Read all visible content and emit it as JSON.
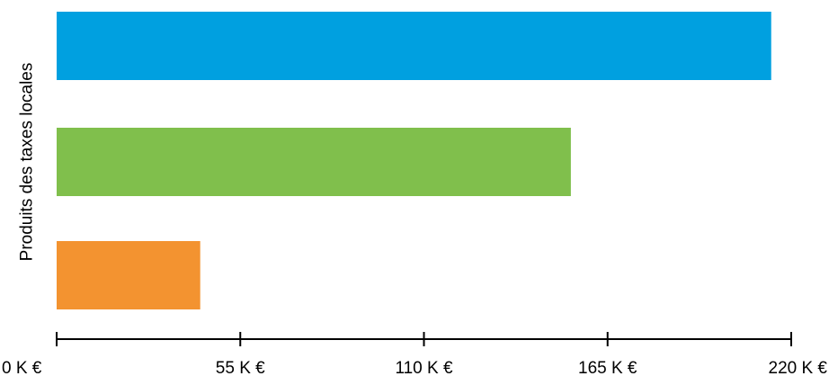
{
  "chart_data": {
    "type": "bar",
    "orientation": "horizontal",
    "categories": [
      "",
      "",
      ""
    ],
    "series": [
      {
        "values": [
          214,
          154,
          43
        ],
        "colors": [
          "#00A0E0",
          "#80BF4C",
          "#F39330"
        ]
      }
    ],
    "xlim": [
      0,
      220
    ],
    "ticks": [
      {
        "value": 0,
        "label": "0 K €"
      },
      {
        "value": 55,
        "label": "55 K €"
      },
      {
        "value": 110,
        "label": "110 K €"
      },
      {
        "value": 165,
        "label": "165 K €"
      },
      {
        "value": 220,
        "label": "220 K €"
      }
    ],
    "ylabel": "Produits des taxes locales",
    "xlabel": "",
    "grid": false,
    "legend": "none"
  }
}
